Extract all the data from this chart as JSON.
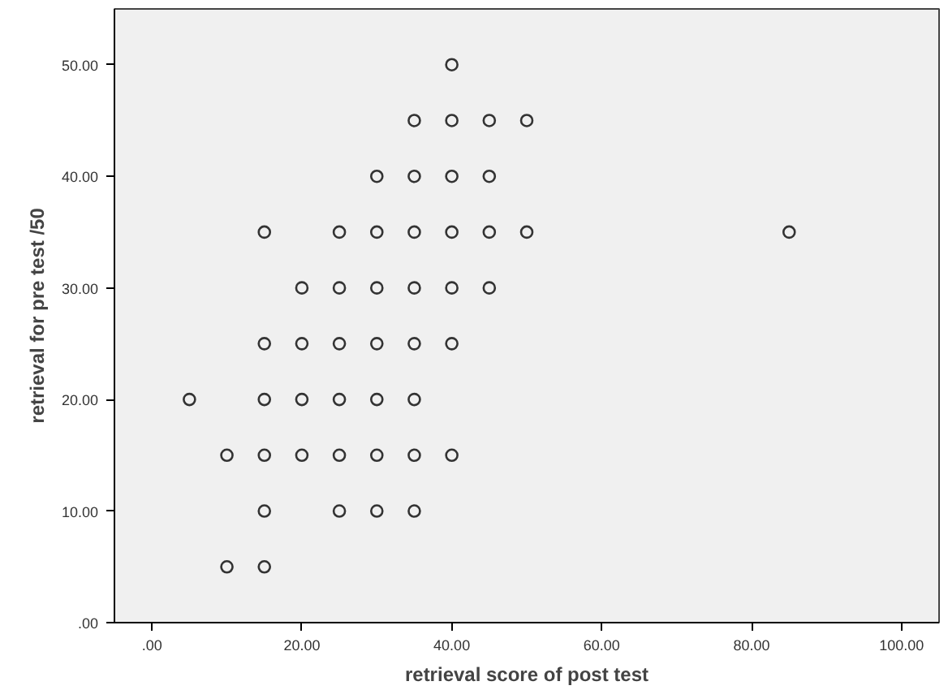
{
  "chart_data": {
    "type": "scatter",
    "xlabel": "retrieval score of post test",
    "ylabel": "retrieval for pre test /50",
    "x": [
      40,
      35,
      40,
      45,
      50,
      30,
      35,
      40,
      45,
      15,
      25,
      30,
      35,
      40,
      45,
      50,
      85,
      20,
      25,
      30,
      35,
      40,
      45,
      15,
      20,
      25,
      30,
      35,
      40,
      5,
      15,
      20,
      25,
      30,
      35,
      10,
      15,
      20,
      25,
      30,
      35,
      40,
      15,
      25,
      30,
      35,
      10,
      15
    ],
    "series": [
      {
        "color": "#333333",
        "values": [
          50,
          45,
          45,
          45,
          45,
          40,
          40,
          40,
          40,
          35,
          35,
          35,
          35,
          35,
          35,
          35,
          35,
          30,
          30,
          30,
          30,
          30,
          30,
          25,
          25,
          25,
          25,
          25,
          25,
          20,
          20,
          20,
          20,
          20,
          20,
          15,
          15,
          15,
          15,
          15,
          15,
          15,
          10,
          10,
          10,
          10,
          5,
          5
        ]
      }
    ],
    "marker": "circle",
    "grid": false,
    "xlim": [
      -5,
      105
    ],
    "ylim": [
      0,
      55
    ],
    "xticks": [
      {
        "value": 0,
        "label": ".00"
      },
      {
        "value": 20,
        "label": "20.00"
      },
      {
        "value": 40,
        "label": "40.00"
      },
      {
        "value": 60,
        "label": "60.00"
      },
      {
        "value": 80,
        "label": "80.00"
      },
      {
        "value": 100,
        "label": "100.00"
      }
    ],
    "yticks": [
      {
        "value": 0,
        "label": ".00"
      },
      {
        "value": 10,
        "label": "10.00"
      },
      {
        "value": 20,
        "label": "20.00"
      },
      {
        "value": 30,
        "label": "30.00"
      },
      {
        "value": 40,
        "label": "40.00"
      },
      {
        "value": 50,
        "label": "50.00"
      }
    ]
  }
}
